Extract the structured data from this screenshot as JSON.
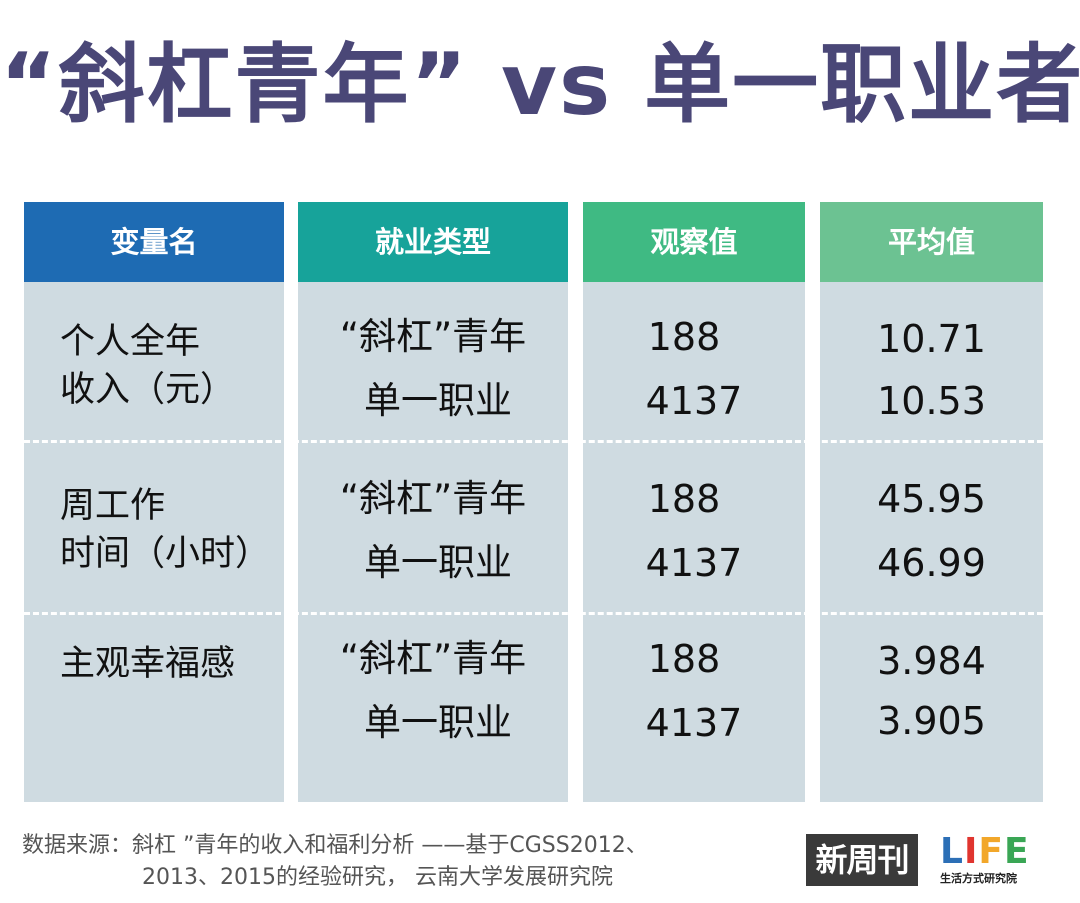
{
  "title": "“斜杠青年” vs 单一职业者",
  "headers": [
    "变量名",
    "就业类型",
    "观察值",
    "平均值"
  ],
  "chart_data": {
    "type": "table",
    "columns": [
      "变量名",
      "就业类型",
      "观察值",
      "平均值"
    ],
    "rows": [
      {
        "variable_line1": "个人全年",
        "variable_line2": "收入（元）",
        "entries": [
          {
            "type": "“斜杠”青年",
            "obs": "188",
            "avg": "10.71"
          },
          {
            "type": "单一职业",
            "obs": "4137",
            "avg": "10.53"
          }
        ]
      },
      {
        "variable_line1": "周工作",
        "variable_line2": "时间（小时）",
        "entries": [
          {
            "type": "“斜杠”青年",
            "obs": "188",
            "avg": "45.95"
          },
          {
            "type": "单一职业",
            "obs": "4137",
            "avg": "46.99"
          }
        ]
      },
      {
        "variable_line1": "主观幸福感",
        "variable_line2": "",
        "entries": [
          {
            "type": "“斜杠”青年",
            "obs": "188",
            "avg": "3.984"
          },
          {
            "type": "单一职业",
            "obs": "4137",
            "avg": "3.905"
          }
        ]
      }
    ]
  },
  "source": {
    "line1": "数据来源：斜杠 ”青年的收入和福利分析 ——基于CGSS2012、",
    "line2": "2013、2015的经验研究，  云南大学发展研究院"
  },
  "logos": {
    "xinzhoukan": "新周刊",
    "life": "LIFE",
    "life_sub": "生活方式研究院"
  },
  "colors": {
    "title": "#4a4777",
    "header_1": "#1e6bb3",
    "header_2": "#17a39a",
    "header_3": "#3fba83",
    "header_4": "#6cc292",
    "body_bg": "#cfdbe1"
  }
}
